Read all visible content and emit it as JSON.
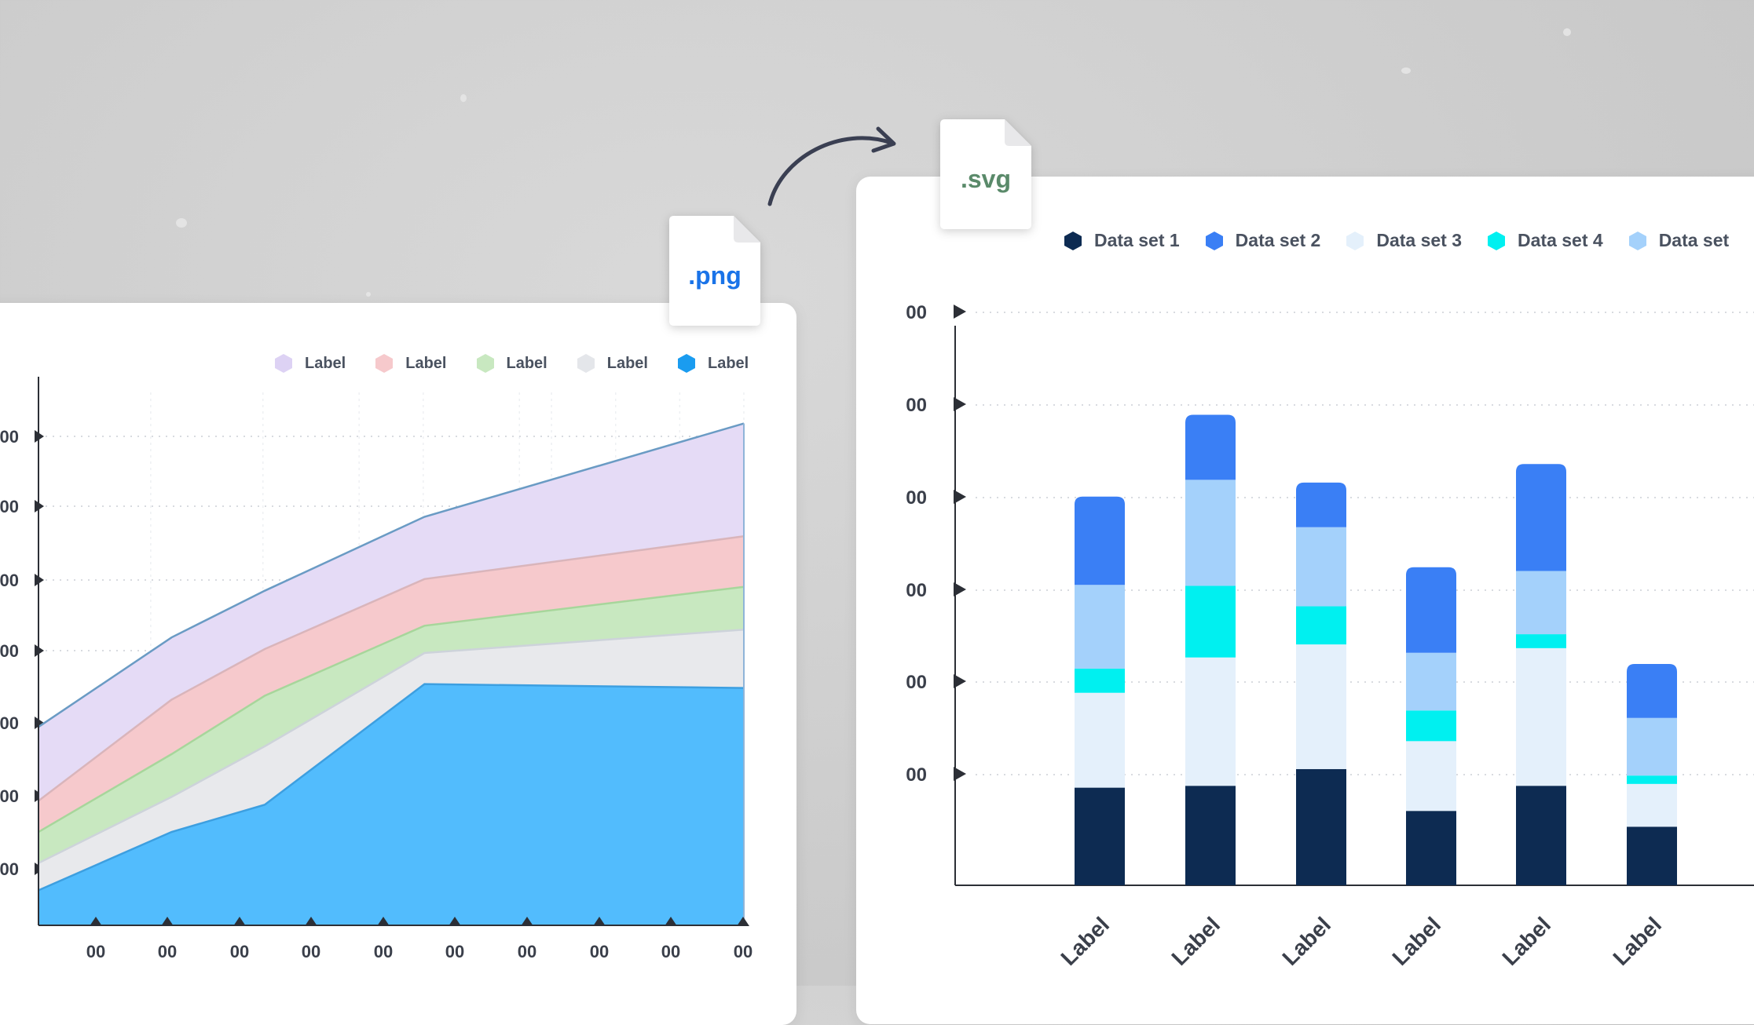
{
  "png_badge": {
    "label": ".png",
    "color": "#1a73e8"
  },
  "svg_badge": {
    "label": ".svg",
    "color": "#5a8a6a"
  },
  "chart_data": [
    {
      "type": "area",
      "title": "",
      "legend": [
        {
          "label": "Label",
          "color": "#ddd2f4"
        },
        {
          "label": "Label",
          "color": "#f6c9cc"
        },
        {
          "label": "Label",
          "color": "#c8e8c0"
        },
        {
          "label": "Label",
          "color": "#e4e6ea"
        },
        {
          "label": "Label",
          "color": "#1a9cf0"
        }
      ],
      "legend_position": "top-right",
      "y_tick_labels": [
        "00",
        "00",
        "00",
        "00",
        "00",
        "00",
        "00"
      ],
      "x_tick_labels": [
        "00",
        "00",
        "00",
        "00",
        "00",
        "00",
        "00",
        "00",
        "00",
        "00"
      ],
      "x": [
        0,
        1.75,
        3.5,
        5,
        6,
        7.5,
        8,
        9,
        10,
        11
      ],
      "x_points": [
        0,
        2,
        3.4,
        5.8,
        10.6
      ],
      "ylim": [
        0,
        7
      ],
      "series_colors": [
        "#52bcfd",
        "#e8e9ec",
        "#c8e8c0",
        "#f6c9cc",
        "#e5dbf6"
      ],
      "stack_tops": [
        [
          0.45,
          1.2,
          1.55,
          3.1,
          3.05
        ],
        [
          0.8,
          1.65,
          2.3,
          3.5,
          3.8
        ],
        [
          1.2,
          2.2,
          2.95,
          3.85,
          4.35
        ],
        [
          1.6,
          2.9,
          3.55,
          4.45,
          5.0
        ],
        [
          2.55,
          3.7,
          4.3,
          5.25,
          6.45
        ]
      ],
      "grid": true
    },
    {
      "type": "bar",
      "stacked": true,
      "title": "",
      "legend": [
        {
          "label": "Data set 1",
          "color": "#0d2b52"
        },
        {
          "label": "Data set 2",
          "color": "#3a7ff5"
        },
        {
          "label": "Data set 3",
          "color": "#e4f0fb"
        },
        {
          "label": "Data set 4",
          "color": "#00f0f0"
        },
        {
          "label": "Data set",
          "color": "#a4d1fb"
        }
      ],
      "legend_position": "top",
      "categories": [
        "Label",
        "Label",
        "Label",
        "Label",
        "Label",
        "Label"
      ],
      "y_tick_labels": [
        "00",
        "00",
        "00",
        "00",
        "00",
        "00"
      ],
      "ylim": [
        0,
        6
      ],
      "series": [
        {
          "name": "Data set 1",
          "color": "#0d2b52",
          "values": [
            1.05,
            1.07,
            1.25,
            0.8,
            1.07,
            0.63
          ]
        },
        {
          "name": "Data set 3",
          "color": "#e4f0fb",
          "values": [
            1.02,
            1.38,
            1.34,
            0.75,
            1.48,
            0.46
          ]
        },
        {
          "name": "Data set 4",
          "color": "#00f0f0",
          "values": [
            0.26,
            0.77,
            0.41,
            0.33,
            0.15,
            0.09
          ]
        },
        {
          "name": "Data set",
          "color": "#a4d1fb",
          "values": [
            0.9,
            1.14,
            0.85,
            0.62,
            0.68,
            0.62
          ]
        },
        {
          "name": "Data set 2",
          "color": "#3a7ff5",
          "values": [
            0.95,
            0.7,
            0.48,
            0.92,
            1.15,
            0.58
          ]
        }
      ],
      "grid": true
    }
  ]
}
